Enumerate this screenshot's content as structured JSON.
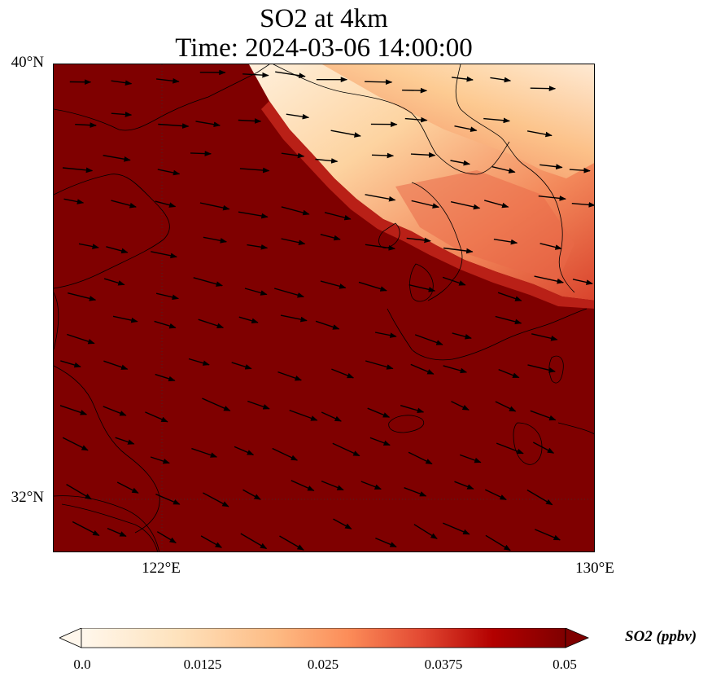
{
  "title": {
    "line1": "SO2 at 4km",
    "line2": "Time: 2024-03-06 14:00:00"
  },
  "axes": {
    "lat_labels": [
      "40°N",
      "32°N"
    ],
    "lon_labels": [
      "122°E",
      "130°E"
    ],
    "lon_range": [
      120,
      130
    ],
    "lat_range": [
      31,
      40
    ],
    "gridlines": "dotted"
  },
  "colorbar": {
    "label": "SO2 (ppbv)",
    "ticks": [
      "0.0",
      "0.0125",
      "0.025",
      "0.0375",
      "0.05"
    ],
    "colormap": "OrRd",
    "extend": "both",
    "colors": [
      "#fff7ec",
      "#fdd49e",
      "#fc8d59",
      "#d7301f",
      "#7f0000"
    ]
  },
  "field": {
    "variable": "SO2",
    "units": "ppbv",
    "range": [
      0.0,
      0.05
    ],
    "description_colors": {
      "high": "#7f0000",
      "low": "#fff7ec"
    }
  },
  "overlay": {
    "vectors": "wind arrows",
    "coastlines": true
  }
}
